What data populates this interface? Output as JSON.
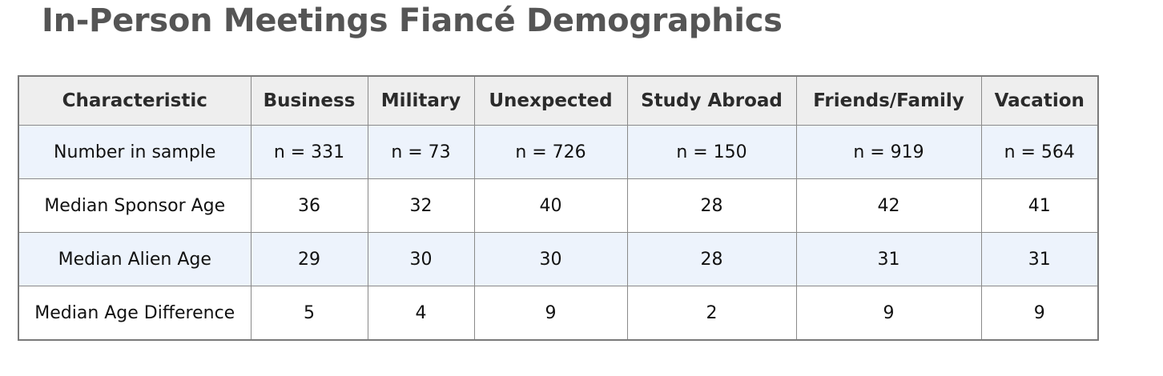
{
  "title": "In-Person Meetings Fiancé Demographics",
  "table": {
    "headers": [
      "Characteristic",
      "Business",
      "Military",
      "Unexpected",
      "Study Abroad",
      "Friends/Family",
      "Vacation"
    ],
    "rows": [
      [
        "Number in sample",
        "n = 331",
        "n = 73",
        "n = 726",
        "n = 150",
        "n = 919",
        "n = 564"
      ],
      [
        "Median Sponsor Age",
        "36",
        "32",
        "40",
        "28",
        "42",
        "41"
      ],
      [
        "Median Alien Age",
        "29",
        "30",
        "30",
        "28",
        "31",
        "31"
      ],
      [
        "Median Age Difference",
        "5",
        "4",
        "9",
        "2",
        "9",
        "9"
      ]
    ]
  },
  "colors": {
    "title": "#555555",
    "header_bg": "#eeeeee",
    "stripe_bg": "#edf3fc",
    "border": "#8a8a8a"
  }
}
